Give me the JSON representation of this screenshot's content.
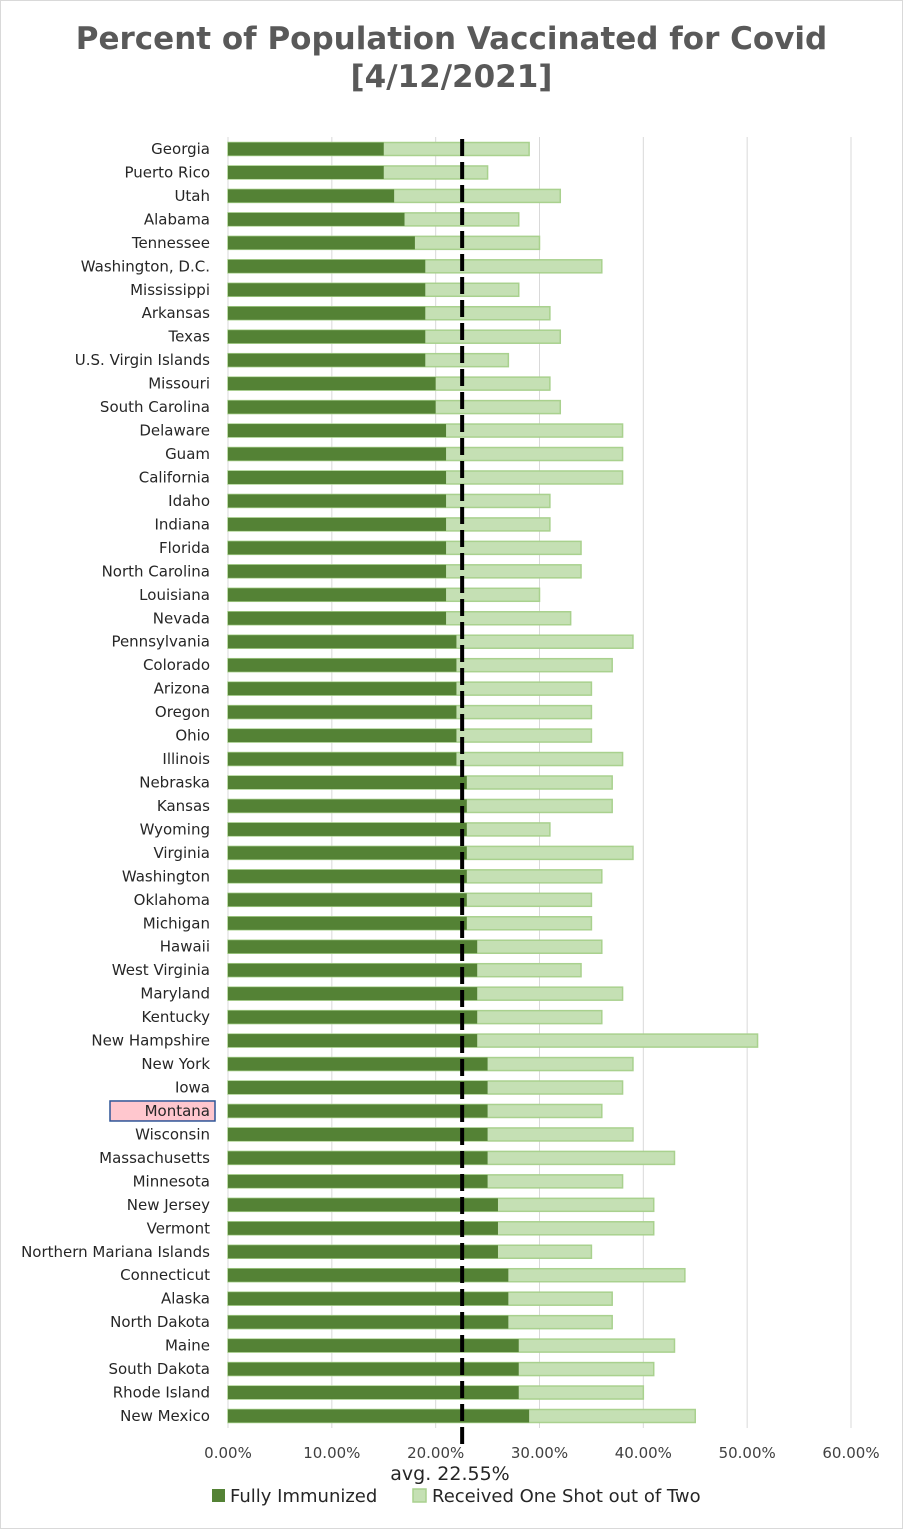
{
  "chart_data": {
    "type": "bar",
    "orientation": "horizontal",
    "stacked": false,
    "title_line1": "Percent of Population Vaccinated for Covid",
    "title_line2": "[4/12/2021]",
    "categories": [
      "Georgia",
      "Puerto Rico",
      "Utah",
      "Alabama",
      "Tennessee",
      "Washington, D.C.",
      "Mississippi",
      "Arkansas",
      "Texas",
      "U.S. Virgin Islands",
      "Missouri",
      "South Carolina",
      "Delaware",
      "Guam",
      "California",
      "Idaho",
      "Indiana",
      "Florida",
      "North Carolina",
      "Louisiana",
      "Nevada",
      "Pennsylvania",
      "Colorado",
      "Arizona",
      "Oregon",
      "Ohio",
      "Illinois",
      "Nebraska",
      "Kansas",
      "Wyoming",
      "Virginia",
      "Washington",
      "Oklahoma",
      "Michigan",
      "Hawaii",
      "West Virginia",
      "Maryland",
      "Kentucky",
      "New Hampshire",
      "New York",
      "Iowa",
      "Montana",
      "Wisconsin",
      "Massachusetts",
      "Minnesota",
      "New Jersey",
      "Vermont",
      "Northern Mariana Islands",
      "Connecticut",
      "Alaska",
      "North Dakota",
      "Maine",
      "South Dakota",
      "Rhode Island",
      "New Mexico"
    ],
    "highlighted_category": "Montana",
    "series": [
      {
        "name": "Fully Immunized",
        "color": "#548235",
        "values": [
          15,
          15,
          16,
          17,
          18,
          19,
          19,
          19,
          19,
          19,
          20,
          20,
          21,
          21,
          21,
          21,
          21,
          21,
          21,
          21,
          21,
          22,
          22,
          22,
          22,
          22,
          22,
          23,
          23,
          23,
          23,
          23,
          23,
          23,
          24,
          24,
          24,
          24,
          24,
          25,
          25,
          25,
          25,
          25,
          25,
          26,
          26,
          26,
          27,
          27,
          27,
          28,
          28,
          28,
          29
        ]
      },
      {
        "name": "Received One Shot out of Two",
        "color": "#c5e0b4",
        "values": [
          29,
          25,
          32,
          28,
          30,
          36,
          28,
          31,
          32,
          27,
          31,
          32,
          38,
          38,
          38,
          31,
          31,
          34,
          34,
          30,
          33,
          39,
          37,
          35,
          35,
          35,
          38,
          37,
          37,
          31,
          39,
          36,
          35,
          35,
          36,
          34,
          38,
          36,
          51,
          39,
          38,
          36,
          39,
          43,
          38,
          41,
          41,
          35,
          44,
          37,
          37,
          43,
          41,
          40,
          45
        ]
      }
    ],
    "average": 22.55,
    "average_label": "avg. 22.55%",
    "xlim": [
      0,
      60
    ],
    "x_ticks": [
      "0.00%",
      "10.00%",
      "20.00%",
      "30.00%",
      "40.00%",
      "50.00%",
      "60.00%"
    ],
    "grid": true,
    "legend_position": "bottom"
  }
}
